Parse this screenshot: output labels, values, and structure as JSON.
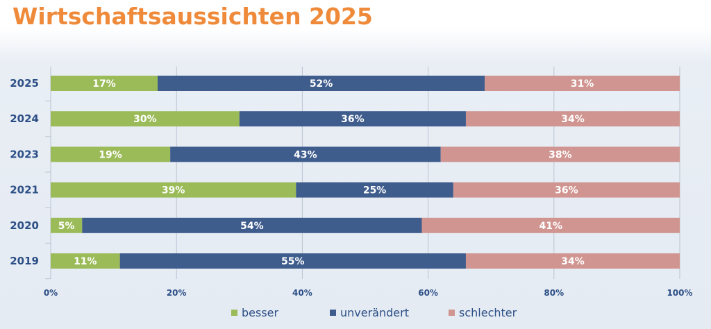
{
  "page": {
    "title": "Wirtschaftsaussichten 2025"
  },
  "chart_data": {
    "type": "bar",
    "orientation": "horizontal",
    "stacked": "percent",
    "categories": [
      "2025",
      "2024",
      "2023",
      "2021",
      "2020",
      "2019"
    ],
    "series": [
      {
        "name": "besser",
        "values": [
          17,
          30,
          19,
          39,
          5,
          11
        ],
        "labels": [
          "17%",
          "30%",
          "19%",
          "39%",
          "5%",
          "11%"
        ],
        "color": "#9bbb59"
      },
      {
        "name": "unverändert",
        "values": [
          52,
          36,
          43,
          25,
          54,
          55
        ],
        "labels": [
          "52%",
          "36%",
          "43%",
          "25%",
          "54%",
          "55%"
        ],
        "color": "#3e5c8c"
      },
      {
        "name": "schlechter",
        "values": [
          31,
          34,
          38,
          36,
          41,
          34
        ],
        "labels": [
          "31%",
          "34%",
          "38%",
          "36%",
          "41%",
          "34%"
        ],
        "color": "#d09590"
      }
    ],
    "xticks": [
      "0%",
      "20%",
      "40%",
      "60%",
      "80%",
      "100%"
    ],
    "xlim": [
      0,
      100
    ],
    "grid": true,
    "legend": "bottom",
    "title": "Wirtschaftsaussichten 2025"
  }
}
